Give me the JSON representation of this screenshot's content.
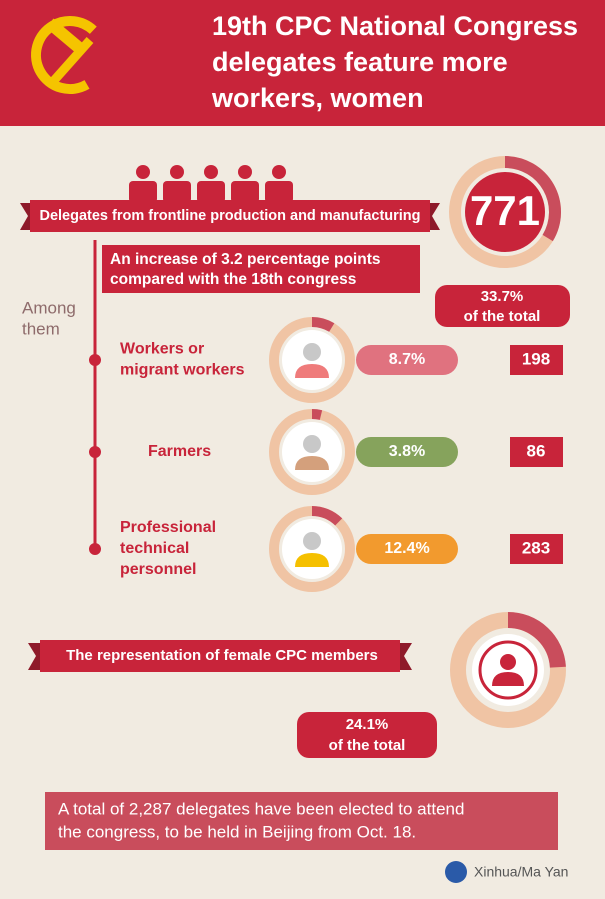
{
  "header": {
    "title_lines": [
      "19th CPC National Congress",
      "delegates feature more",
      "workers, women"
    ]
  },
  "frontline": {
    "banner": "Delegates from frontline production and manufacturing",
    "total": 771,
    "share": {
      "value": 33.7,
      "label": "33.7%"
    },
    "share_note": "of the total",
    "increase_lines": [
      "An increase of 3.2 percentage points",
      "compared with the 18th congress"
    ],
    "among_lines": [
      "Among",
      "them"
    ],
    "groups": [
      {
        "name_lines": [
          "Workers or",
          "migrant workers"
        ],
        "share": {
          "value": 8.7,
          "label": "8.7%"
        },
        "count": 198,
        "pill_color": "#e0727f",
        "icon_color": "#ef7b7b"
      },
      {
        "name_lines": [
          "Farmers"
        ],
        "share": {
          "value": 3.8,
          "label": "3.8%"
        },
        "count": 86,
        "pill_color": "#86a35c",
        "icon_color": "#d4a07c"
      },
      {
        "name_lines": [
          "Professional",
          "technical",
          "personnel"
        ],
        "share": {
          "value": 12.4,
          "label": "12.4%"
        },
        "count": 283,
        "pill_color": "#f29a2e",
        "icon_color": "#f5c000"
      }
    ]
  },
  "female": {
    "banner": "The representation of female CPC members",
    "share": {
      "value": 24.1,
      "label": "24.1%"
    },
    "share_note": "of the total"
  },
  "note_lines": [
    "A total of 2,287 delegates have been elected to attend",
    "the congress, to be held in Beijing from Oct. 18."
  ],
  "credit": "Xinhua/Ma Yan"
}
